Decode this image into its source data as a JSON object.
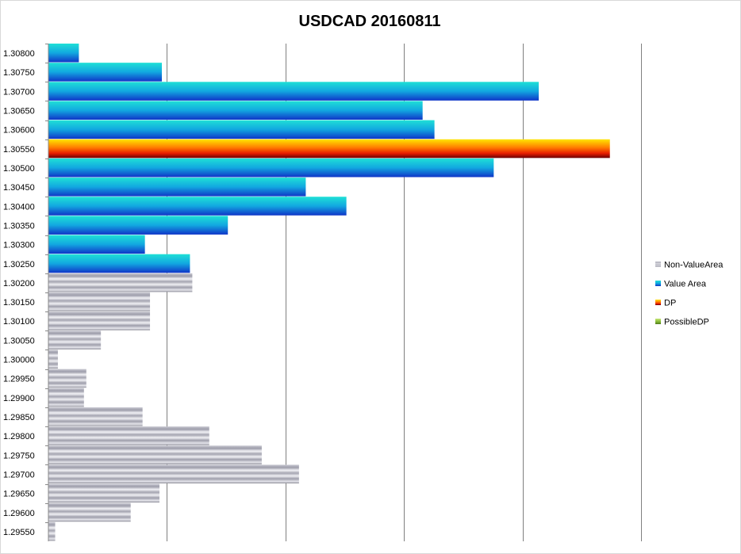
{
  "chart_data": {
    "type": "bar",
    "orientation": "horizontal",
    "title": "USDCAD 20160811",
    "xlabel": "",
    "ylabel": "",
    "xlim": [
      0,
      1750
    ],
    "x_gridlines": [
      350,
      700,
      1050,
      1400,
      1750
    ],
    "grid": true,
    "legend_position": "right",
    "categories": [
      "1.30800",
      "1.30750",
      "1.30700",
      "1.30650",
      "1.30600",
      "1.30550",
      "1.30500",
      "1.30450",
      "1.30400",
      "1.30350",
      "1.30300",
      "1.30250",
      "1.30200",
      "1.30150",
      "1.30100",
      "1.30050",
      "1.30000",
      "1.29950",
      "1.29900",
      "1.29850",
      "1.29800",
      "1.29750",
      "1.29700",
      "1.29650",
      "1.29600",
      "1.29550"
    ],
    "series": [
      {
        "name": "Non-ValueArea",
        "color": "#9a9aa6",
        "values": [
          0,
          0,
          0,
          0,
          0,
          0,
          0,
          0,
          0,
          0,
          0,
          0,
          425,
          300,
          300,
          155,
          28,
          112,
          105,
          278,
          475,
          630,
          740,
          328,
          243,
          20
        ]
      },
      {
        "name": "Value Area",
        "color": "#12a8e0",
        "values": [
          90,
          335,
          1448,
          1105,
          1140,
          0,
          1315,
          760,
          880,
          530,
          285,
          418,
          0,
          0,
          0,
          0,
          0,
          0,
          0,
          0,
          0,
          0,
          0,
          0,
          0,
          0
        ]
      },
      {
        "name": "DP",
        "color": "#ff6600",
        "values": [
          0,
          0,
          0,
          0,
          0,
          1658,
          0,
          0,
          0,
          0,
          0,
          0,
          0,
          0,
          0,
          0,
          0,
          0,
          0,
          0,
          0,
          0,
          0,
          0,
          0,
          0
        ]
      },
      {
        "name": "PossibleDP",
        "color": "#8bbf3a",
        "values": [
          0,
          0,
          0,
          0,
          0,
          0,
          0,
          0,
          0,
          0,
          0,
          0,
          0,
          0,
          0,
          0,
          0,
          0,
          0,
          0,
          0,
          0,
          0,
          0,
          0,
          0
        ]
      }
    ]
  }
}
